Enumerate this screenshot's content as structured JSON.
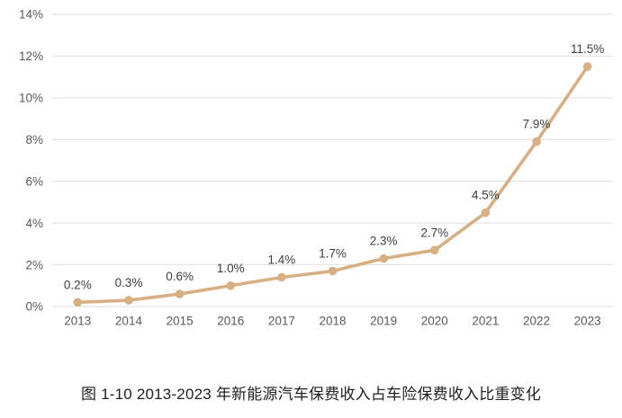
{
  "chart_data": {
    "type": "line",
    "categories": [
      "2013",
      "2014",
      "2015",
      "2016",
      "2017",
      "2018",
      "2019",
      "2020",
      "2021",
      "2022",
      "2023"
    ],
    "values": [
      0.2,
      0.3,
      0.6,
      1.0,
      1.4,
      1.7,
      2.3,
      2.7,
      4.5,
      7.9,
      11.5
    ],
    "point_labels": [
      "0.2%",
      "0.3%",
      "0.6%",
      "1.0%",
      "1.4%",
      "1.7%",
      "2.3%",
      "2.7%",
      "4.5%",
      "7.9%",
      "11.5%"
    ],
    "y_ticks": [
      "0%",
      "2%",
      "4%",
      "6%",
      "8%",
      "10%",
      "12%",
      "14%"
    ],
    "ylim": [
      0,
      14
    ],
    "grid": true,
    "legend": "none",
    "title": "图 1-10 2013-2023 年新能源汽车保费收入占车险保费收入比重变化",
    "title_position": "bottom",
    "xlabel": "",
    "ylabel": "",
    "colors": {
      "line": "#D7AF82",
      "marker": "#D7AF82",
      "grid": "#E3E3E3",
      "axis_label": "#595959",
      "data_label": "#3D3D3D"
    }
  }
}
